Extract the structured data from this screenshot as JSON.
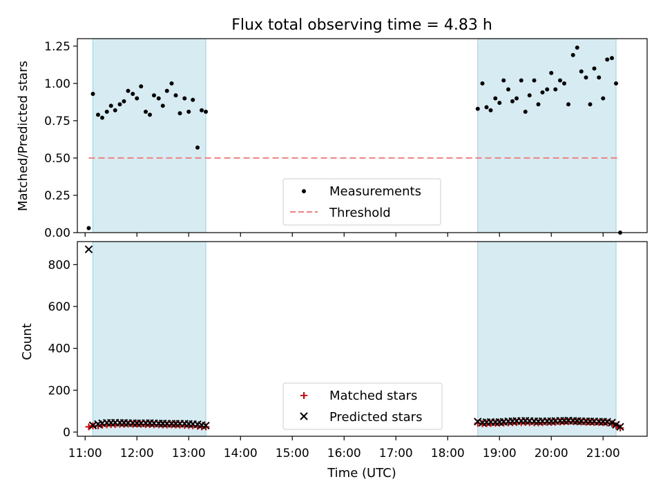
{
  "chart_data": [
    {
      "type": "scatter",
      "title": "Flux total observing time = 4.83 h",
      "xlabel": "",
      "ylabel": "Matched/Predicted stars",
      "xlim": [
        10.85,
        21.85
      ],
      "ylim": [
        0.0,
        1.3
      ],
      "yticks": [
        0.0,
        0.25,
        0.5,
        0.75,
        1.0,
        1.25
      ],
      "ytick_labels": [
        "0.00",
        "0.25",
        "0.50",
        "0.75",
        "1.00",
        "1.25"
      ],
      "shaded_intervals": [
        [
          11.15,
          13.33
        ],
        [
          18.58,
          21.25
        ]
      ],
      "series": [
        {
          "name": "Measurements",
          "marker": "dot",
          "color": "#000000",
          "points": [
            [
              11.07,
              0.03
            ],
            [
              11.15,
              0.93
            ],
            [
              11.25,
              0.79
            ],
            [
              11.33,
              0.77
            ],
            [
              11.42,
              0.81
            ],
            [
              11.5,
              0.85
            ],
            [
              11.58,
              0.82
            ],
            [
              11.67,
              0.86
            ],
            [
              11.75,
              0.88
            ],
            [
              11.83,
              0.95
            ],
            [
              11.92,
              0.93
            ],
            [
              12.0,
              0.9
            ],
            [
              12.08,
              0.98
            ],
            [
              12.17,
              0.81
            ],
            [
              12.25,
              0.79
            ],
            [
              12.33,
              0.92
            ],
            [
              12.42,
              0.9
            ],
            [
              12.5,
              0.85
            ],
            [
              12.58,
              0.95
            ],
            [
              12.67,
              1.0
            ],
            [
              12.75,
              0.92
            ],
            [
              12.83,
              0.8
            ],
            [
              12.92,
              0.9
            ],
            [
              13.0,
              0.81
            ],
            [
              13.08,
              0.89
            ],
            [
              13.17,
              0.57
            ],
            [
              13.25,
              0.82
            ],
            [
              13.33,
              0.81
            ],
            [
              18.58,
              0.83
            ],
            [
              18.67,
              1.0
            ],
            [
              18.75,
              0.84
            ],
            [
              18.83,
              0.82
            ],
            [
              18.92,
              0.9
            ],
            [
              19.0,
              0.87
            ],
            [
              19.08,
              1.02
            ],
            [
              19.17,
              0.96
            ],
            [
              19.25,
              0.88
            ],
            [
              19.33,
              0.9
            ],
            [
              19.42,
              1.02
            ],
            [
              19.5,
              0.81
            ],
            [
              19.58,
              0.92
            ],
            [
              19.67,
              1.02
            ],
            [
              19.75,
              0.86
            ],
            [
              19.83,
              0.94
            ],
            [
              19.92,
              0.96
            ],
            [
              20.0,
              1.07
            ],
            [
              20.08,
              0.96
            ],
            [
              20.17,
              1.02
            ],
            [
              20.25,
              1.0
            ],
            [
              20.33,
              0.86
            ],
            [
              20.42,
              1.19
            ],
            [
              20.5,
              1.24
            ],
            [
              20.58,
              1.08
            ],
            [
              20.67,
              1.04
            ],
            [
              20.75,
              0.86
            ],
            [
              20.83,
              1.1
            ],
            [
              20.92,
              1.04
            ],
            [
              21.0,
              0.9
            ],
            [
              21.08,
              1.16
            ],
            [
              21.17,
              1.17
            ],
            [
              21.25,
              1.0
            ],
            [
              21.33,
              0.0
            ]
          ]
        },
        {
          "name": "Threshold",
          "style": "dashed-line",
          "color": "#f08080",
          "x": [
            11.07,
            21.33
          ],
          "y": [
            0.5,
            0.5
          ]
        }
      ],
      "legend": [
        "Measurements",
        "Threshold"
      ],
      "legend_position": "lower-center"
    },
    {
      "type": "scatter",
      "title": "",
      "xlabel": "Time (UTC)",
      "ylabel": "Count",
      "xlim": [
        10.85,
        21.85
      ],
      "ylim": [
        -20,
        910
      ],
      "xticks": [
        11,
        12,
        13,
        14,
        15,
        16,
        17,
        18,
        19,
        20,
        21
      ],
      "xtick_labels": [
        "11:00",
        "12:00",
        "13:00",
        "14:00",
        "15:00",
        "16:00",
        "17:00",
        "18:00",
        "19:00",
        "20:00",
        "21:00"
      ],
      "yticks": [
        0,
        200,
        400,
        600,
        800
      ],
      "ytick_labels": [
        "0",
        "200",
        "400",
        "600",
        "800"
      ],
      "shaded_intervals": [
        [
          11.15,
          13.33
        ],
        [
          18.58,
          21.25
        ]
      ],
      "series": [
        {
          "name": "Matched stars",
          "marker": "plus",
          "color": "#e00000",
          "x": [
            11.07,
            11.15,
            11.25,
            11.33,
            11.42,
            11.5,
            11.58,
            11.67,
            11.75,
            11.83,
            11.92,
            12.0,
            12.08,
            12.17,
            12.25,
            12.33,
            12.42,
            12.5,
            12.58,
            12.67,
            12.75,
            12.83,
            12.92,
            13.0,
            13.08,
            13.17,
            13.25,
            13.33,
            18.58,
            18.67,
            18.75,
            18.83,
            18.92,
            19.0,
            19.08,
            19.17,
            19.25,
            19.33,
            19.42,
            19.5,
            19.58,
            19.67,
            19.75,
            19.83,
            19.92,
            20.0,
            20.08,
            20.17,
            20.25,
            20.33,
            20.42,
            20.5,
            20.58,
            20.67,
            20.75,
            20.83,
            20.92,
            21.0,
            21.08,
            21.17,
            21.25,
            21.33
          ],
          "y": [
            25,
            30,
            30,
            33,
            35,
            36,
            36,
            37,
            37,
            38,
            37,
            38,
            37,
            36,
            36,
            35,
            35,
            34,
            34,
            35,
            34,
            33,
            32,
            31,
            30,
            28,
            25,
            25,
            42,
            40,
            40,
            41,
            42,
            42,
            43,
            44,
            45,
            46,
            45,
            46,
            45,
            44,
            44,
            45,
            46,
            46,
            47,
            48,
            49,
            50,
            50,
            49,
            48,
            47,
            47,
            46,
            46,
            45,
            44,
            40,
            30,
            20
          ]
        },
        {
          "name": "Predicted stars",
          "marker": "x",
          "color": "#000000",
          "x": [
            11.07,
            11.15,
            11.25,
            11.33,
            11.42,
            11.5,
            11.58,
            11.67,
            11.75,
            11.83,
            11.92,
            12.0,
            12.08,
            12.17,
            12.25,
            12.33,
            12.42,
            12.5,
            12.58,
            12.67,
            12.75,
            12.83,
            12.92,
            13.0,
            13.08,
            13.17,
            13.25,
            13.33,
            18.58,
            18.67,
            18.75,
            18.83,
            18.92,
            19.0,
            19.08,
            19.17,
            19.25,
            19.33,
            19.42,
            19.5,
            19.58,
            19.67,
            19.75,
            19.83,
            19.92,
            20.0,
            20.08,
            20.17,
            20.25,
            20.33,
            20.42,
            20.5,
            20.58,
            20.67,
            20.75,
            20.83,
            20.92,
            21.0,
            21.08,
            21.17,
            21.25,
            21.33
          ],
          "y": [
            873,
            32,
            38,
            42,
            44,
            44,
            45,
            44,
            44,
            43,
            43,
            42,
            42,
            43,
            43,
            42,
            41,
            41,
            40,
            40,
            40,
            40,
            40,
            39,
            38,
            37,
            33,
            31,
            50,
            45,
            47,
            48,
            47,
            48,
            49,
            51,
            52,
            53,
            53,
            54,
            53,
            52,
            51,
            52,
            52,
            52,
            53,
            54,
            54,
            55,
            54,
            53,
            52,
            52,
            51,
            51,
            50,
            50,
            49,
            45,
            35,
            25
          ]
        }
      ],
      "legend": [
        "Matched stars",
        "Predicted stars"
      ],
      "legend_position": "lower-center"
    }
  ]
}
